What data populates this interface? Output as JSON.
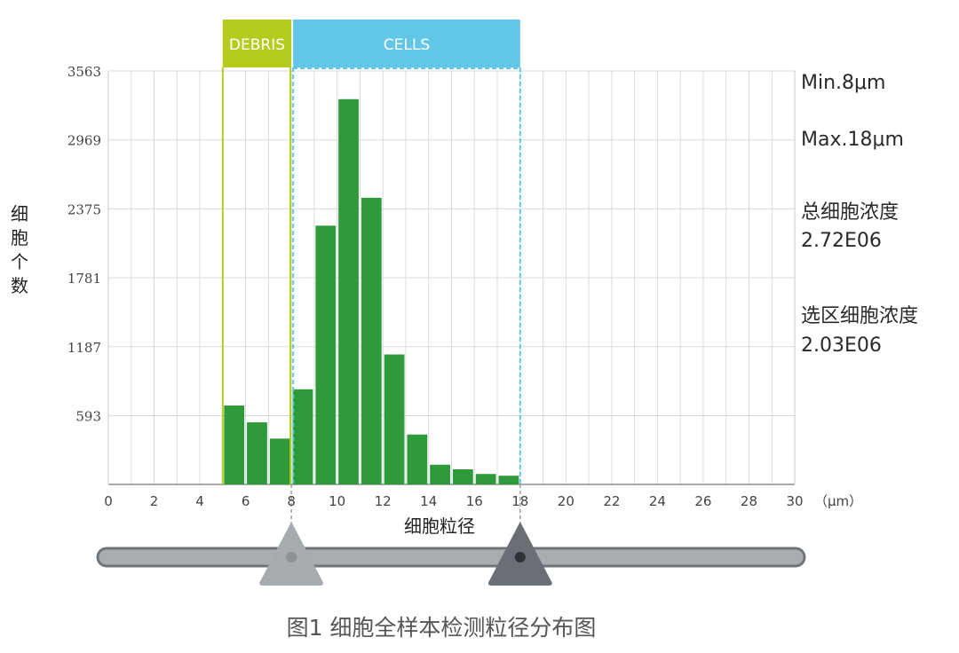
{
  "chart_data": {
    "type": "bar",
    "x_range": [
      0,
      30
    ],
    "x_ticks": [
      "0",
      "2",
      "4",
      "6",
      "8",
      "10",
      "12",
      "14",
      "16",
      "18",
      "20",
      "22",
      "24",
      "26",
      "28",
      "30"
    ],
    "x_unit": "（μm）",
    "xlabel": "细胞粒径",
    "ylabel": "细胞个数",
    "y_range": [
      0,
      3563
    ],
    "y_ticks": [
      "3563",
      "2969",
      "2375",
      "1781",
      "1187",
      "593"
    ],
    "bin_width": 1,
    "bins": [
      {
        "x0": 5,
        "value": 680,
        "gate": "debris"
      },
      {
        "x0": 6,
        "value": 535,
        "gate": "debris"
      },
      {
        "x0": 7,
        "value": 395,
        "gate": "debris"
      },
      {
        "x0": 8,
        "value": 820,
        "gate": "cells"
      },
      {
        "x0": 9,
        "value": 2230,
        "gate": "cells"
      },
      {
        "x0": 10,
        "value": 3320,
        "gate": "cells"
      },
      {
        "x0": 11,
        "value": 2470,
        "gate": "cells"
      },
      {
        "x0": 12,
        "value": 1120,
        "gate": "cells"
      },
      {
        "x0": 13,
        "value": 430,
        "gate": "cells"
      },
      {
        "x0": 14,
        "value": 170,
        "gate": "cells"
      },
      {
        "x0": 15,
        "value": 130,
        "gate": "cells"
      },
      {
        "x0": 16,
        "value": 90,
        "gate": "cells"
      },
      {
        "x0": 17,
        "value": 75,
        "gate": "cells"
      }
    ],
    "gates": [
      {
        "label": "DEBRIS",
        "from": 5,
        "to": 8,
        "color": "#b5cc1e"
      },
      {
        "label": "CELLS",
        "from": 8,
        "to": 18,
        "color": "#62c6e8"
      }
    ],
    "slider": {
      "min": 8,
      "max": 18
    },
    "grid": true,
    "bar_color": "#2e9a3a"
  },
  "side_info": {
    "min": "Min.8μm",
    "max": "Max.18μm",
    "total_label": "总细胞浓度",
    "total_value": "2.72E06",
    "selected_label": "选区细胞浓度",
    "selected_value": "2.03E06"
  },
  "caption": "图1  细胞全样本检测粒径分布图"
}
